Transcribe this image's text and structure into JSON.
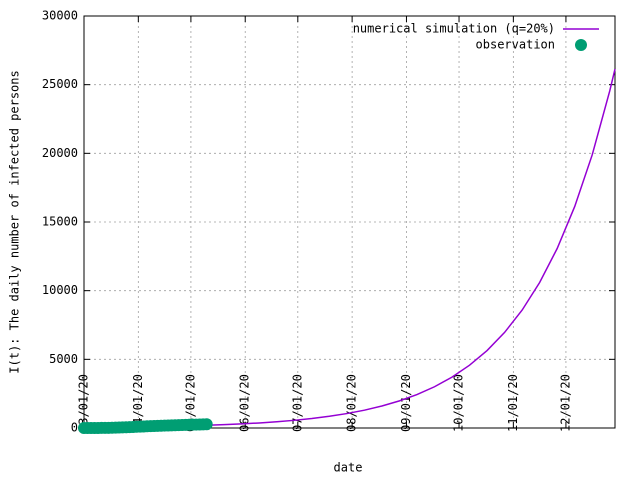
{
  "chart_data": {
    "type": "line",
    "x_label": "date",
    "y_label": "I(t): The daily number of infected persons",
    "xlim": [
      "2020-03-01",
      "2020-12-29"
    ],
    "xticks": [
      {
        "value": "2020-03-01",
        "label": "03/01/20"
      },
      {
        "value": "2020-04-01",
        "label": "04/01/20"
      },
      {
        "value": "2020-05-01",
        "label": "05/01/20"
      },
      {
        "value": "2020-06-01",
        "label": "06/01/20"
      },
      {
        "value": "2020-07-01",
        "label": "07/01/20"
      },
      {
        "value": "2020-08-01",
        "label": "08/01/20"
      },
      {
        "value": "2020-09-01",
        "label": "09/01/20"
      },
      {
        "value": "2020-10-01",
        "label": "10/01/20"
      },
      {
        "value": "2020-11-01",
        "label": "11/01/20"
      },
      {
        "value": "2020-12-01",
        "label": "12/01/20"
      }
    ],
    "ylim": [
      0,
      30000
    ],
    "yticks": [
      0,
      5000,
      10000,
      15000,
      20000,
      25000,
      30000
    ],
    "grid": true,
    "legend": "top-right",
    "series": [
      {
        "name": "numerical simulation (q=20%)",
        "color": "#9400d3",
        "style": "line",
        "x": [
          "2020-03-01",
          "2020-03-11",
          "2020-03-21",
          "2020-03-31",
          "2020-04-10",
          "2020-04-20",
          "2020-04-30",
          "2020-05-10",
          "2020-05-20",
          "2020-05-30",
          "2020-06-09",
          "2020-06-19",
          "2020-06-29",
          "2020-07-09",
          "2020-07-19",
          "2020-07-29",
          "2020-08-08",
          "2020-08-18",
          "2020-08-28",
          "2020-09-07",
          "2020-09-17",
          "2020-09-27",
          "2020-10-07",
          "2020-10-17",
          "2020-10-27",
          "2020-11-06",
          "2020-11-16",
          "2020-11-26",
          "2020-12-06",
          "2020-12-16",
          "2020-12-26",
          "2020-12-29"
        ],
        "values": [
          45,
          56,
          69,
          85,
          104,
          129,
          159,
          196,
          242,
          298,
          368,
          454,
          560,
          691,
          852,
          1051,
          1297,
          1600,
          1974,
          2435,
          3004,
          3706,
          4573,
          5641,
          6960,
          8586,
          10593,
          13069,
          16123,
          19891,
          24540,
          26136
        ]
      },
      {
        "name": "observation",
        "color": "#009e73",
        "style": "points",
        "x": [
          "2020-03-01",
          "2020-03-03",
          "2020-03-05",
          "2020-03-07",
          "2020-03-09",
          "2020-03-11",
          "2020-03-13",
          "2020-03-15",
          "2020-03-17",
          "2020-03-19",
          "2020-03-21",
          "2020-03-23",
          "2020-03-25",
          "2020-03-27",
          "2020-03-29",
          "2020-03-31",
          "2020-04-02",
          "2020-04-04",
          "2020-04-06",
          "2020-04-08",
          "2020-04-10",
          "2020-04-12",
          "2020-04-14",
          "2020-04-16",
          "2020-04-18",
          "2020-04-20",
          "2020-04-22",
          "2020-04-24",
          "2020-04-26",
          "2020-04-28",
          "2020-04-30",
          "2020-05-02",
          "2020-05-04",
          "2020-05-06",
          "2020-05-08",
          "2020-05-10"
        ],
        "values": [
          0,
          0,
          1,
          2,
          3,
          5,
          8,
          12,
          18,
          25,
          33,
          42,
          52,
          63,
          75,
          88,
          100,
          112,
          124,
          135,
          146,
          157,
          167,
          177,
          186,
          195,
          204,
          212,
          220,
          228,
          236,
          243,
          250,
          257,
          263,
          270
        ]
      }
    ]
  }
}
